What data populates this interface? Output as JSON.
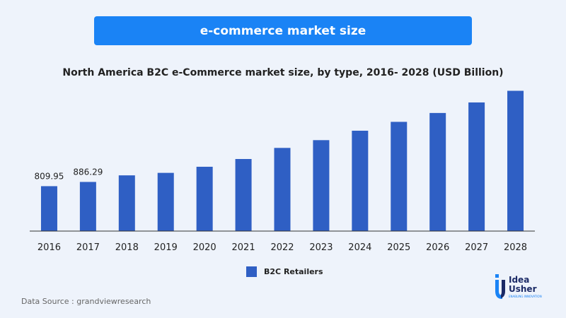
{
  "header": {
    "banner": "e-commerce market size"
  },
  "chart_data": {
    "type": "bar",
    "title": "North America B2C e-Commerce market size, by type, 2016- 2028 (USD Billion)",
    "categories": [
      "2016",
      "2017",
      "2018",
      "2019",
      "2020",
      "2021",
      "2022",
      "2023",
      "2024",
      "2025",
      "2026",
      "2027",
      "2028"
    ],
    "series": [
      {
        "name": "B2C Retailers",
        "values": [
          809.95,
          886.29,
          1005,
          1050,
          1160,
          1300,
          1500,
          1640,
          1810,
          1970,
          2130,
          2320,
          2530
        ],
        "labels": [
          "809.95",
          "886.29",
          "",
          "",
          "",
          "",
          "",
          "",
          "",
          "",
          "",
          "",
          ""
        ]
      }
    ],
    "ylim": [
      0,
      2600
    ],
    "grid": false,
    "legend": "bottom",
    "bar_color": "#2f5fc4",
    "axis_color": "#333333"
  },
  "footer": {
    "source": "Data Source : grandviewresearch",
    "logo_word1": "Idea",
    "logo_word2": "Usher",
    "logo_tagline": "ENABLING INNOVATION"
  },
  "colors": {
    "background": "#eef3fb",
    "banner": "#1a83f5",
    "logo_navy": "#1b2a66"
  }
}
